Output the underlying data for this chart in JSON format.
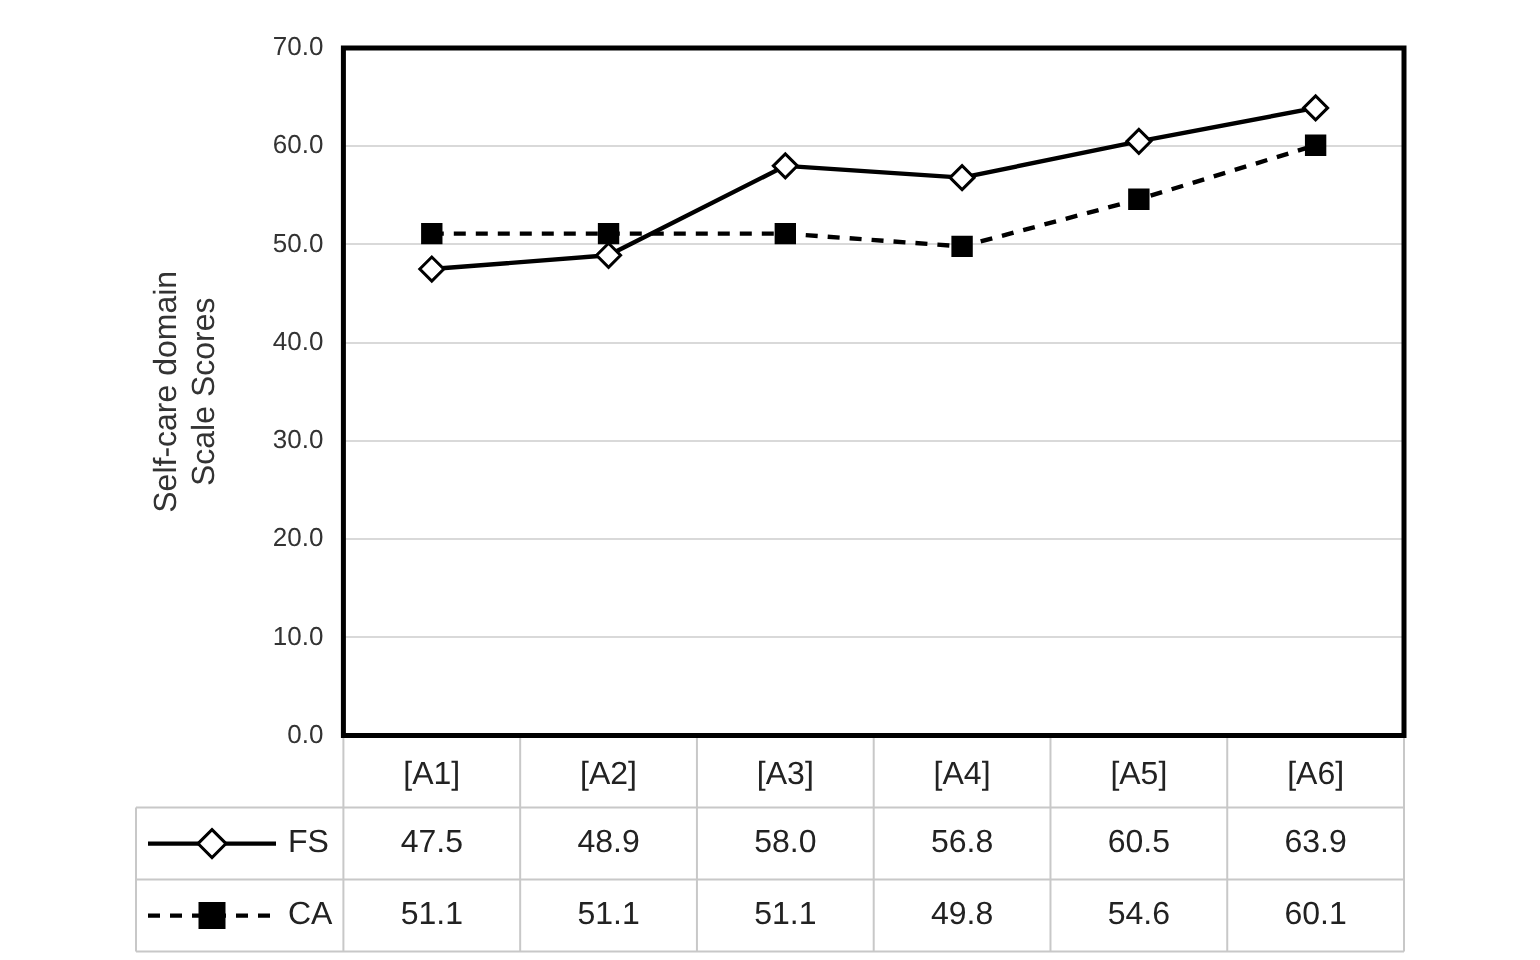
{
  "chart_data": {
    "type": "line",
    "ylabel": "Self-care domain Scale Scores",
    "categories": [
      "[A1]",
      "[A2]",
      "[A3]",
      "[A4]",
      "[A5]",
      "[A6]"
    ],
    "series": [
      {
        "name": "FS",
        "color": "#000000",
        "marker": "diamond",
        "line_style": "solid",
        "values": [
          47.5,
          48.9,
          58.0,
          56.8,
          60.5,
          63.9
        ],
        "value_labels": [
          "47.5",
          "48.9",
          "58.0",
          "56.8",
          "60.5",
          "63.9"
        ]
      },
      {
        "name": "CA",
        "color": "#000000",
        "marker": "square",
        "line_style": "dashed",
        "values": [
          51.1,
          51.1,
          51.1,
          49.8,
          54.6,
          60.1
        ],
        "value_labels": [
          "51.1",
          "51.1",
          "51.1",
          "49.8",
          "54.6",
          "60.1"
        ]
      }
    ],
    "ylim": [
      0,
      70
    ],
    "yticks": [
      {
        "value": 0,
        "label": "0.0"
      },
      {
        "value": 10,
        "label": "10.0"
      },
      {
        "value": 20,
        "label": "20.0"
      },
      {
        "value": 30,
        "label": "30.0"
      },
      {
        "value": 40,
        "label": "40.0"
      },
      {
        "value": 50,
        "label": "50.0"
      },
      {
        "value": 60,
        "label": "60.0"
      },
      {
        "value": 70,
        "label": "70.0"
      }
    ],
    "grid": "y",
    "legend": "bottom"
  }
}
